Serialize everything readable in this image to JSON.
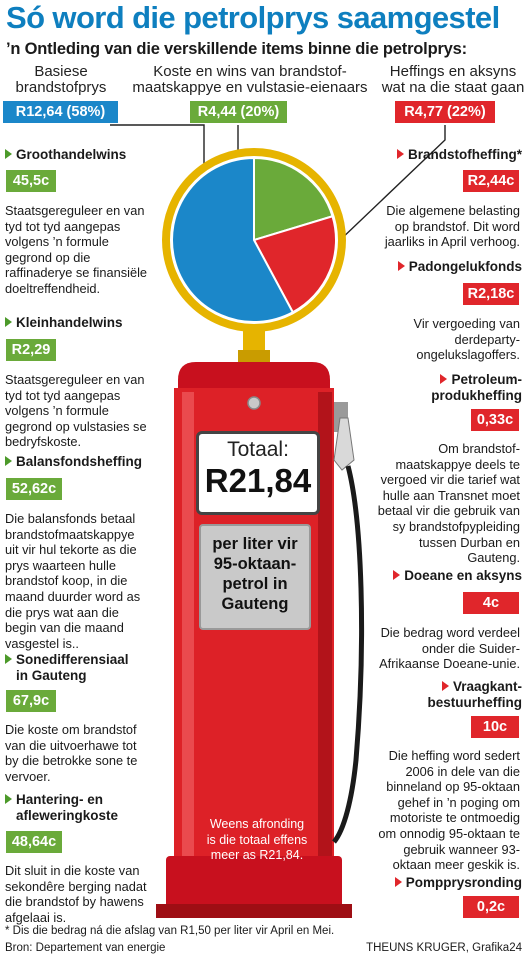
{
  "title": "Só word die petrolprys saamgestel",
  "subtitle": "’n Ontleding van die verskillende items binne die petrolprys:",
  "categories": {
    "basic": {
      "label": "Basiese brandstofprys",
      "badge": "R12,64 (58%)"
    },
    "oil": {
      "label": "Koste en wins van brandstof-maatskappye en vulstasie-eienaars",
      "badge": "R4,44 (20%)"
    },
    "state": {
      "label": "Heffings en aksyns wat na die staat gaan",
      "badge": "R4,77 (22%)"
    }
  },
  "chart_data": {
    "type": "pie",
    "slices": [
      {
        "label": "Basiese brandstofprys",
        "value": 12.64,
        "percent": 58,
        "color": "#1b87c9"
      },
      {
        "label": "Koste en wins van brandstof-maatskappye en vulstasie-eienaars",
        "value": 4.44,
        "percent": 20,
        "color": "#6aaa3a"
      },
      {
        "label": "Heffings en aksyns wat na die staat gaan",
        "value": 4.77,
        "percent": 22,
        "color": "#e0262b"
      }
    ],
    "total": 21.84
  },
  "left_items": [
    {
      "name": "Groothandelwins",
      "value": "45,5c",
      "desc": "Staatsgereguleer en van tyd tot tyd aangepas volgens ’n formule gegrond op die raffinaderye se finansiële doeltreffendheid."
    },
    {
      "name": "Kleinhandelwins",
      "value": "R2,29",
      "desc": "Staatsgereguleer en van tyd tot tyd aangepas volgens ’n formule gegrond op vulstasies se bedryfskoste."
    },
    {
      "name": "Balansfondsheffing",
      "value": "52,62c",
      "desc": "Die balansfonds betaal brandstofmaatskappye uit vir hul tekorte as die prys waarteen hulle brandstof koop, in die maand duurder word as die prys wat aan die begin van die maand vasgestel is.."
    },
    {
      "name": "Sonedifferensiaal in Gauteng",
      "value": "67,9c",
      "desc": "Die koste om brandstof van die uitvoerhawe tot by die betrokke sone te vervoer."
    },
    {
      "name": "Hantering- en afleweringkoste",
      "value": "48,64c",
      "desc": "Dit sluit in die koste van sekondêre berging nadat die brandstof by hawens afgelaai is."
    }
  ],
  "right_items": [
    {
      "name": "Brandstofheffing*",
      "value": "R2,44c",
      "desc": "Die algemene belasting op brandstof. Dit word jaarliks in April verhoog."
    },
    {
      "name": "Padongelukfonds",
      "value": "R2,18c",
      "desc": "Vir vergoeding van derdeparty-ongelukslagoffers."
    },
    {
      "name": "Petroleum-produkheffing",
      "value": "0,33c",
      "desc": "Om brandstof-maatskappye deels te vergoed vir die tarief wat hulle aan Transnet moet betaal vir die gebruik van sy brandstofpypleiding tussen Durban en Gauteng."
    },
    {
      "name": "Doeane en aksyns",
      "value": "4c",
      "desc": "Die bedrag word verdeel onder die Suider-Afrikaanse Doeane-unie."
    },
    {
      "name": "Vraagkant-bestuurheffing",
      "value": "10c",
      "desc": "Die heffing word sedert 2006 in dele van die binneland op 95-oktaan gehef in ’n poging om motoriste te ontmoedig om onnodig 95-oktaan te gebruik wanneer 93-oktaan meer geskik is."
    },
    {
      "name": "Pomppryseronding",
      "value": "0,2c",
      "desc": ""
    }
  ],
  "pump": {
    "total_label": "Totaal:",
    "total_value": "R21,84",
    "per_liter": "per liter vir 95-oktaan-petrol in Gauteng",
    "rounding_note": "Weens afronding is die totaal effens meer as R21,84."
  },
  "footnote": "* Dis die bedrag ná die afslag van R1,50 per liter vir April en Mei.",
  "source": "Bron: Departement van energie",
  "credit": "THEUNS KRUGER, Grafika24"
}
